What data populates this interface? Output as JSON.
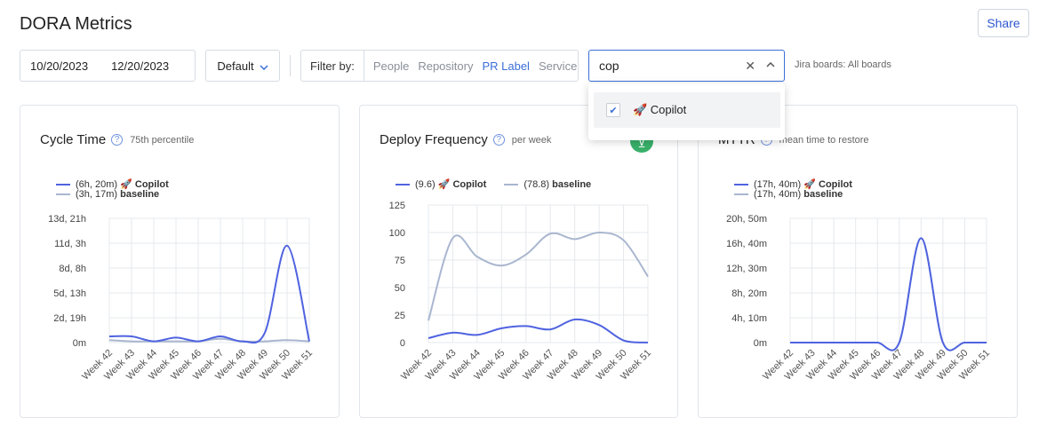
{
  "header": {
    "title": "DORA Metrics",
    "share_label": "Share"
  },
  "filters": {
    "date_start": "10/20/2023",
    "date_end": "12/20/2023",
    "preset": "Default",
    "filter_by_label": "Filter by:",
    "options": [
      "People",
      "Repository",
      "PR Label",
      "Service"
    ],
    "active_option": "PR Label",
    "search_value": "cop",
    "jira_label": "Jira boards: All boards"
  },
  "dropdown": {
    "items": [
      {
        "label": "🚀 Copilot",
        "checked": true
      }
    ]
  },
  "colors": {
    "accent": "#3b6fd8",
    "copilot": "#4f63e0",
    "baseline": "#a9b6cf",
    "badge": "#39b06a"
  },
  "icons": {
    "help": "question-circle-icon",
    "clear": "close-icon",
    "collapse": "chevron-up-icon",
    "preset": "chevron-down-icon"
  },
  "cards": [
    {
      "title": "Cycle Time",
      "subtitle": "75th percentile",
      "legend": [
        {
          "value": "(6h, 20m)",
          "name": "🚀 Copilot"
        },
        {
          "value": "(3h, 17m)",
          "name": "baseline"
        }
      ]
    },
    {
      "title": "Deploy Frequency",
      "subtitle": "per week",
      "legend": [
        {
          "value": "(9.6)",
          "name": "🚀 Copilot"
        },
        {
          "value": "(78.8)",
          "name": "baseline"
        }
      ]
    },
    {
      "title": "MTTR",
      "subtitle": "mean time to restore",
      "legend": [
        {
          "value": "(17h, 40m)",
          "name": "🚀 Copilot"
        },
        {
          "value": "(17h, 40m)",
          "name": "baseline"
        }
      ]
    }
  ],
  "chart_data": [
    {
      "type": "line",
      "title": "Cycle Time",
      "categories": [
        "Week 42",
        "Week 43",
        "Week 44",
        "Week 45",
        "Week 46",
        "Week 47",
        "Week 48",
        "Week 49",
        "Week 50",
        "Week 51"
      ],
      "y_ticks": [
        "0m",
        "2d, 19h",
        "5d, 13h",
        "8d, 8h",
        "11d, 3h",
        "13d, 21h"
      ],
      "ylim": [
        0,
        5
      ],
      "series": [
        {
          "name": "🚀 Copilot",
          "values": [
            0.25,
            0.25,
            0.05,
            0.2,
            0.05,
            0.25,
            0.05,
            0.4,
            3.9,
            0.05
          ]
        },
        {
          "name": "baseline",
          "values": [
            0.1,
            0.05,
            0.05,
            0.05,
            0.05,
            0.15,
            0.05,
            0.05,
            0.1,
            0.05
          ]
        }
      ]
    },
    {
      "type": "line",
      "title": "Deploy Frequency",
      "categories": [
        "Week 42",
        "Week 43",
        "Week 44",
        "Week 45",
        "Week 46",
        "Week 47",
        "Week 48",
        "Week 49",
        "Week 50",
        "Week 51"
      ],
      "y_ticks": [
        "0",
        "25",
        "50",
        "75",
        "100",
        "125"
      ],
      "ylim": [
        0,
        125
      ],
      "series": [
        {
          "name": "🚀 Copilot",
          "values": [
            4,
            9,
            7,
            13,
            15,
            12,
            21,
            16,
            2,
            0
          ]
        },
        {
          "name": "baseline",
          "values": [
            20,
            95,
            78,
            70,
            80,
            99,
            94,
            100,
            93,
            60
          ]
        }
      ]
    },
    {
      "type": "line",
      "title": "MTTR",
      "categories": [
        "Week 42",
        "Week 43",
        "Week 44",
        "Week 45",
        "Week 46",
        "Week 47",
        "Week 48",
        "Week 49",
        "Week 50",
        "Week 51"
      ],
      "y_ticks": [
        "0m",
        "4h, 10m",
        "8h, 20m",
        "12h, 30m",
        "16h, 40m",
        "20h, 50m"
      ],
      "ylim": [
        0,
        5
      ],
      "series": [
        {
          "name": "🚀 Copilot",
          "values": [
            0,
            0,
            0,
            0,
            0,
            0,
            4.2,
            0,
            0,
            0
          ]
        },
        {
          "name": "baseline",
          "values": [
            0,
            0,
            0,
            0,
            0,
            0,
            4.2,
            0,
            0,
            0
          ]
        }
      ]
    }
  ]
}
